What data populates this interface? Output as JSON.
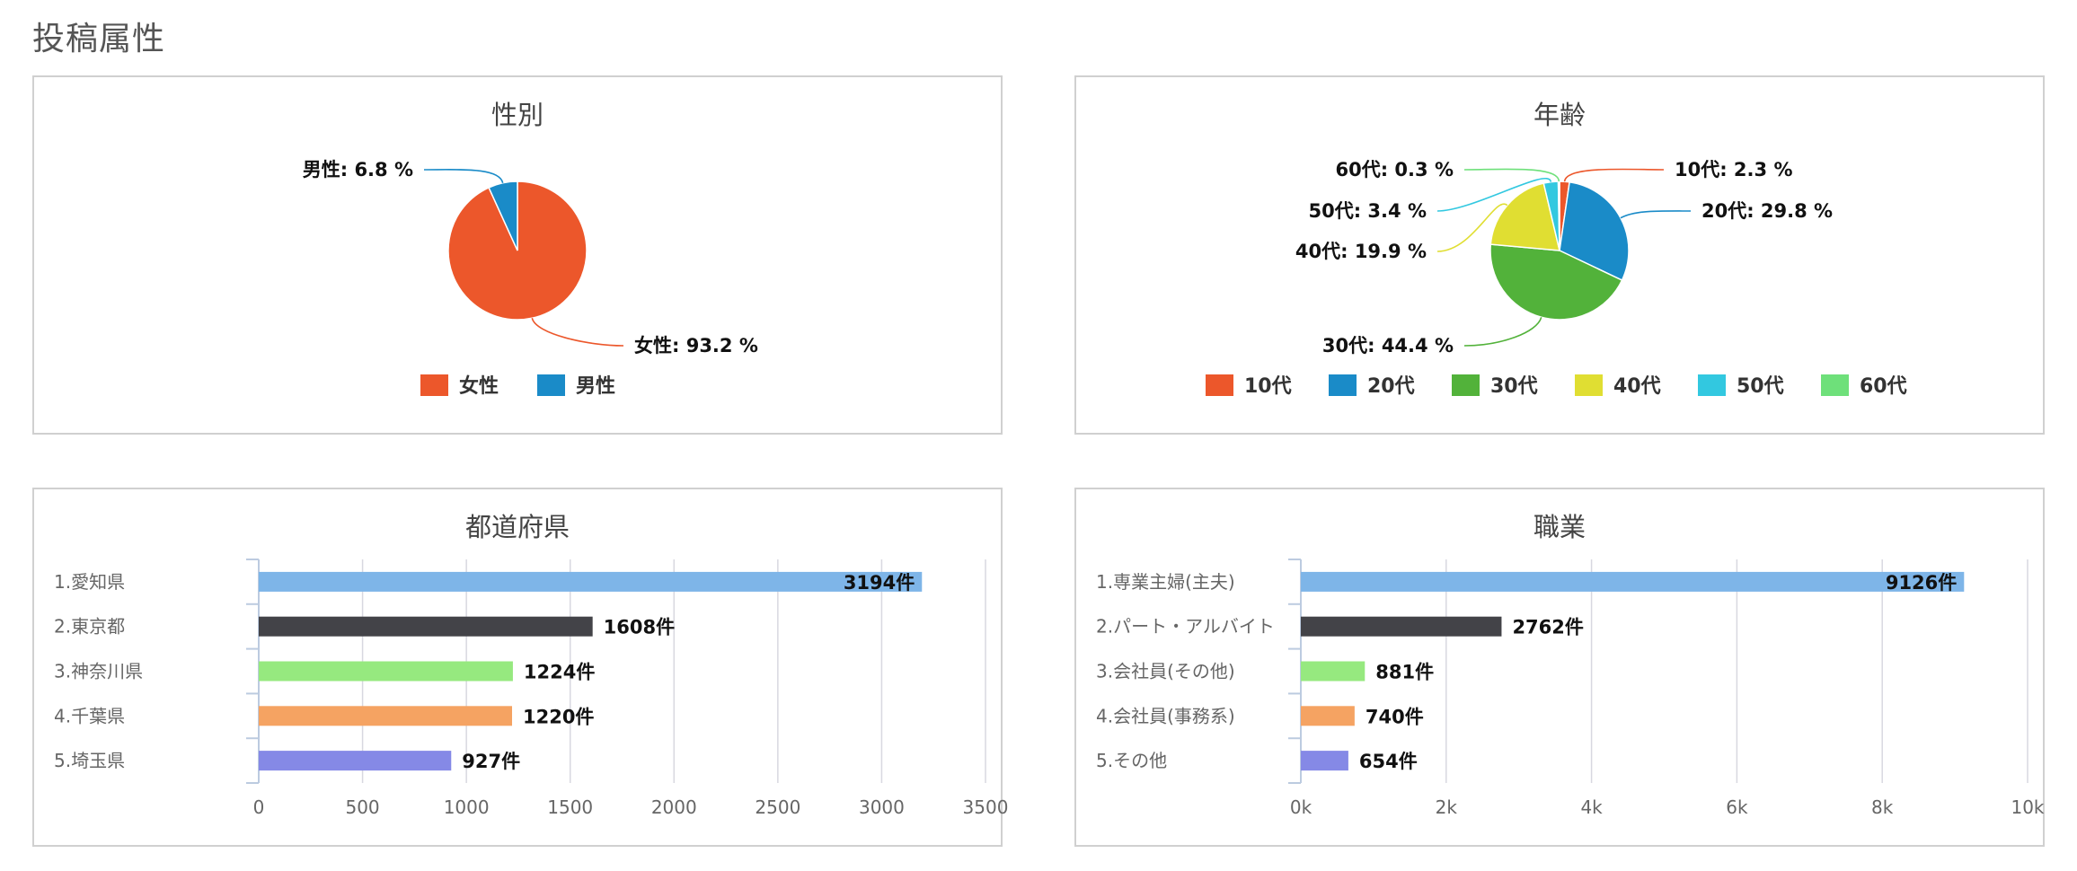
{
  "page": {
    "title": "投稿属性"
  },
  "chart_data": [
    {
      "type": "pie",
      "title": "性別",
      "slices": [
        {
          "name": "女性",
          "value": 93.2,
          "label": "女性: 93.2 %",
          "color": "#ec572b"
        },
        {
          "name": "男性",
          "value": 6.8,
          "label": "男性: 6.8 %",
          "color": "#1a8bc8"
        }
      ],
      "legend": "bottom"
    },
    {
      "type": "pie",
      "title": "年齢",
      "slices": [
        {
          "name": "10代",
          "value": 2.3,
          "label": "10代: 2.3 %",
          "color": "#ec572b"
        },
        {
          "name": "20代",
          "value": 29.8,
          "label": "20代: 29.8 %",
          "color": "#1a8bc8"
        },
        {
          "name": "30代",
          "value": 44.4,
          "label": "30代: 44.4 %",
          "color": "#52b23a"
        },
        {
          "name": "40代",
          "value": 19.9,
          "label": "40代: 19.9 %",
          "color": "#e0de32"
        },
        {
          "name": "50代",
          "value": 3.4,
          "label": "50代: 3.4 %",
          "color": "#32c8e0"
        },
        {
          "name": "60代",
          "value": 0.3,
          "label": "60代: 0.3 %",
          "color": "#6ee07a"
        }
      ],
      "legend": "bottom"
    },
    {
      "type": "bar",
      "orientation": "horizontal",
      "title": "都道府県",
      "categories": [
        "1.愛知県",
        "2.東京都",
        "3.神奈川県",
        "4.千葉県",
        "5.埼玉県"
      ],
      "values": [
        3194,
        1608,
        1224,
        1220,
        927
      ],
      "value_labels": [
        "3194件",
        "1608件",
        "1224件",
        "1220件",
        "927件"
      ],
      "colors": [
        "#7eb5e8",
        "#434348",
        "#96e97f",
        "#f5a362",
        "#8589e6"
      ],
      "xlim": [
        0,
        3500
      ],
      "ticks": [
        0,
        500,
        1000,
        1500,
        2000,
        2500,
        3000,
        3500
      ],
      "tick_labels": [
        "0",
        "500",
        "1000",
        "1500",
        "2000",
        "2500",
        "3000",
        "3500"
      ],
      "grid": true
    },
    {
      "type": "bar",
      "orientation": "horizontal",
      "title": "職業",
      "categories": [
        "1.専業主婦(主夫)",
        "2.パート・アルバイト",
        "3.会社員(その他)",
        "4.会社員(事務系)",
        "5.その他"
      ],
      "values": [
        9126,
        2762,
        881,
        740,
        654
      ],
      "value_labels": [
        "9126件",
        "2762件",
        "881件",
        "740件",
        "654件"
      ],
      "colors": [
        "#7eb5e8",
        "#434348",
        "#96e97f",
        "#f5a362",
        "#8589e6"
      ],
      "xlim": [
        0,
        10000
      ],
      "ticks": [
        0,
        2000,
        4000,
        6000,
        8000,
        10000
      ],
      "tick_labels": [
        "0k",
        "2k",
        "4k",
        "6k",
        "8k",
        "10k"
      ],
      "grid": true
    }
  ]
}
